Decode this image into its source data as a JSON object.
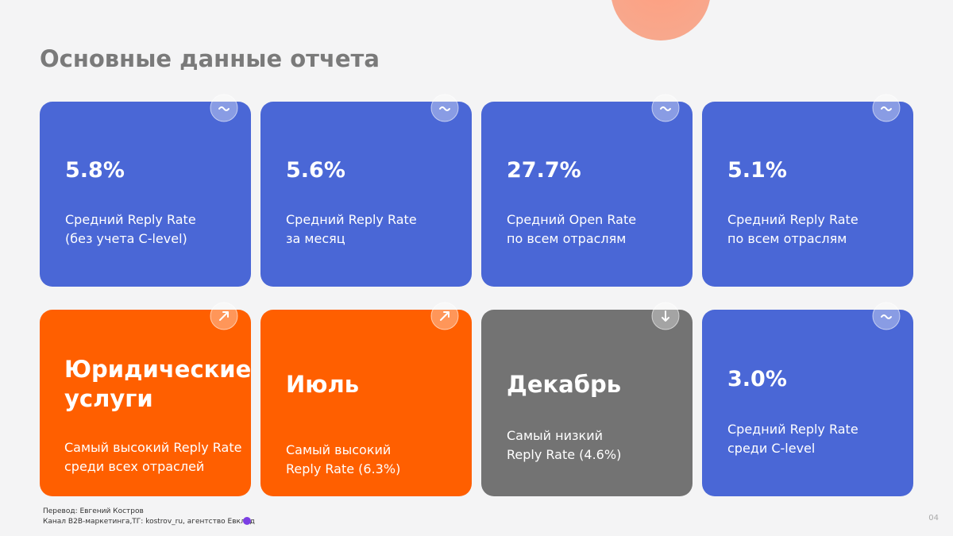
{
  "header": {
    "title": "Основные данные отчета"
  },
  "cards": [
    {
      "value": "5.8%",
      "caption": [
        "Средний Reply Rate",
        "(без учета C-level)"
      ]
    },
    {
      "value": "5.6%",
      "caption": [
        "Средний Reply Rate",
        "за месяц"
      ]
    },
    {
      "value": "27.7%",
      "caption": [
        "Средний Open Rate",
        "по всем отраслям"
      ]
    },
    {
      "value": "5.1%",
      "caption": [
        "Средний Reply Rate",
        "по всем отраслям"
      ]
    },
    {
      "value": [
        "Юридические",
        "услуги"
      ],
      "caption": [
        "Самый высокий Reply Rate",
        "среди всех отраслей"
      ]
    },
    {
      "value": "Июль",
      "caption": [
        "Самый высокий",
        "Reply Rate (6.3%)"
      ]
    },
    {
      "value": "Декабрь",
      "caption": [
        "Самый низкий",
        "Reply Rate (4.6%)"
      ]
    },
    {
      "value": "3.0%",
      "caption": [
        "Средний Reply Rate",
        "среди C-level"
      ]
    }
  ],
  "footer": {
    "lines": [
      "Перевод: Евгений Костров",
      "Канал B2B-маркетинга,ТГ: kostrov_ru, агентство Евклид"
    ],
    "page": "04"
  }
}
